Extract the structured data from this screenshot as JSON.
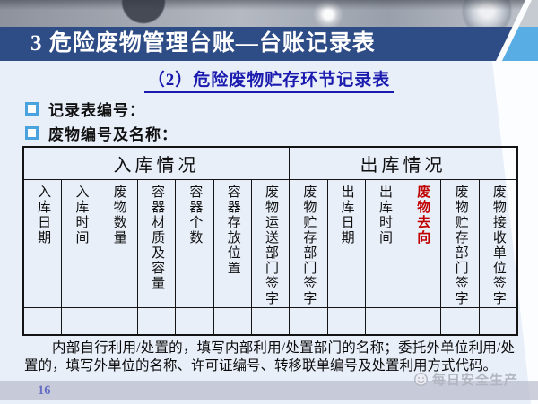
{
  "slide": {
    "title": "3 危险废物管理台账—台账记录表",
    "subtitle": "（2）危险废物贮存环节记录表",
    "bullets": [
      "记录表编号：",
      "废物编号及名称："
    ],
    "note": "内部自行利用/处置的，填写内部利用/处置部门的名称；委托外单位利用/处置的，填写外单位的名称、许可证编号、转移联单编号及处置利用方式代码。",
    "page_number": "16",
    "watermark_text": "每日安全生产"
  },
  "table": {
    "groups": [
      {
        "label": "入库情况",
        "span": 7
      },
      {
        "label": "出库情况",
        "span": 6
      }
    ],
    "columns": [
      {
        "label": "入库日期"
      },
      {
        "label": "入库时间"
      },
      {
        "label": "废物数量"
      },
      {
        "label": "容器材质及容量"
      },
      {
        "label": "容器个数"
      },
      {
        "label": "容器存放位置"
      },
      {
        "label": "废物运送部门签字"
      },
      {
        "label": "废物贮存部门签字"
      },
      {
        "label": "出库日期"
      },
      {
        "label": "出库时间"
      },
      {
        "label": "废物去向",
        "highlight": true
      },
      {
        "label": "废物贮存部门签字"
      },
      {
        "label": "废物接收单位签字"
      }
    ],
    "empty_rows": 1
  },
  "colors": {
    "title_bar_blue": "#2e4c85",
    "corner_light_blue": "#58ade4",
    "subtitle_blue": "#1a1aae",
    "bullet_square_blue": "#4aa3dc",
    "highlight_red": "#c00000",
    "page_number_blue": "#666fc4",
    "bottom_bar_gray": "#c9cad7",
    "background_light_blue": "#e9eff9"
  }
}
